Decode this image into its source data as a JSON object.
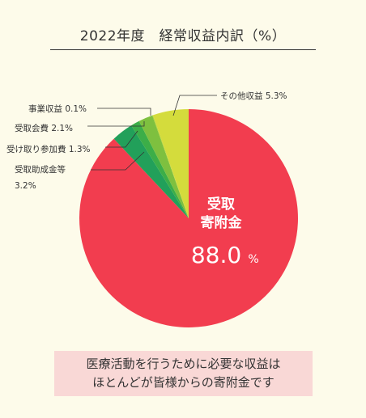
{
  "title": "2022年度　経常収益内訳（%）",
  "chart_data": {
    "type": "pie",
    "unit": "%",
    "start": "12 o'clock",
    "direction": "clockwise",
    "slices": [
      {
        "label": "受取寄附金",
        "value": 88.0,
        "color": "#f23d4f",
        "label_lines": [
          "受取",
          "寄附金"
        ],
        "value_text": "88.0",
        "unit_text": "%"
      },
      {
        "label": "受取助成金等",
        "value": 3.2,
        "color": "#22a05a",
        "label_lines": [
          "受取助成金等",
          "3.2%"
        ]
      },
      {
        "label": "受け取り参加費",
        "value": 1.3,
        "color": "#3cae48",
        "label_lines": [
          "受け取り参加費 1.3%"
        ]
      },
      {
        "label": "受取会費",
        "value": 2.1,
        "color": "#7ec03f",
        "label_lines": [
          "受取会費 2.1%"
        ]
      },
      {
        "label": "事業収益",
        "value": 0.1,
        "color": "#aed235",
        "label_lines": [
          "事業収益 0.1%"
        ]
      },
      {
        "label": "その他収益",
        "value": 5.3,
        "color": "#d4dc3c",
        "label_lines": [
          "その他収益 5.3%"
        ]
      }
    ]
  },
  "note": {
    "lines": [
      "医療活動を行うために必要な収益は",
      "ほとんどが皆様からの寄附金です"
    ]
  }
}
